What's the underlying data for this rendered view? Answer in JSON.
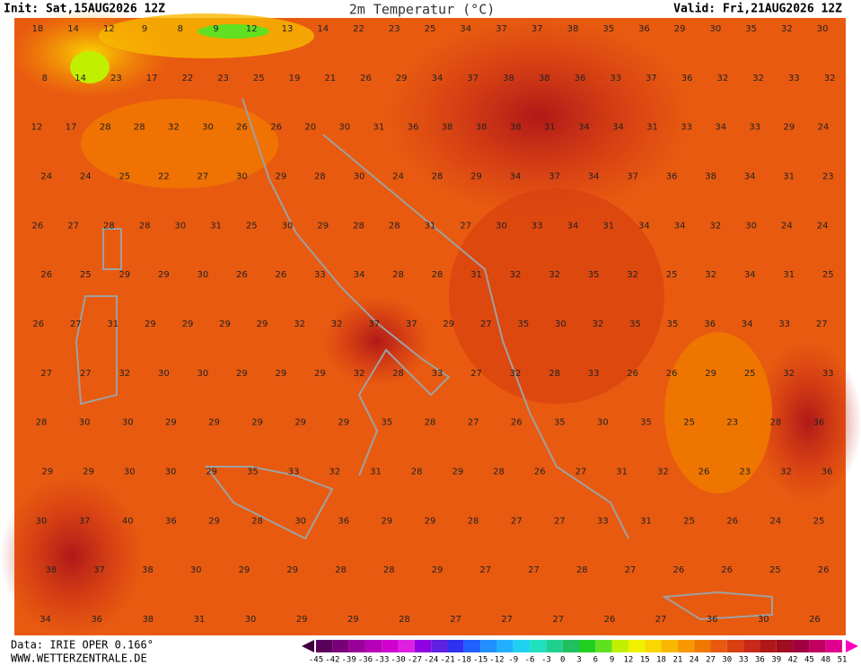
{
  "header": {
    "init": "Init: Sat,15AUG2026 12Z",
    "title": "2m Temperatur (°C)",
    "valid": "Valid: Fri,21AUG2026 12Z"
  },
  "footer": {
    "data": "Data: IRIE OPER 0.166°",
    "site": "WWW.WETTERZENTRALE.DE"
  },
  "temperature_rows": [
    [
      18,
      14,
      12,
      9,
      8,
      9,
      12,
      13,
      14,
      22,
      23,
      25,
      34,
      37,
      37,
      38,
      35,
      36,
      29,
      30,
      35,
      32,
      30
    ],
    [
      8,
      14,
      23,
      17,
      22,
      23,
      25,
      19,
      21,
      26,
      29,
      34,
      37,
      38,
      38,
      36,
      33,
      37,
      36,
      32,
      32,
      33,
      32
    ],
    [
      12,
      17,
      28,
      28,
      32,
      30,
      26,
      26,
      20,
      30,
      31,
      36,
      38,
      38,
      38,
      31,
      34,
      34,
      31,
      33,
      34,
      33,
      29,
      24
    ],
    [
      24,
      24,
      25,
      22,
      27,
      30,
      29,
      28,
      30,
      24,
      28,
      29,
      34,
      37,
      34,
      37,
      36,
      38,
      34,
      31,
      23
    ],
    [
      26,
      27,
      28,
      28,
      30,
      31,
      25,
      30,
      29,
      28,
      28,
      31,
      27,
      30,
      33,
      34,
      31,
      34,
      34,
      32,
      30,
      24,
      24
    ],
    [
      26,
      25,
      29,
      29,
      30,
      26,
      26,
      33,
      34,
      28,
      28,
      31,
      32,
      32,
      35,
      32,
      25,
      32,
      34,
      31,
      25
    ],
    [
      26,
      27,
      31,
      29,
      29,
      29,
      29,
      32,
      32,
      37,
      37,
      29,
      27,
      35,
      30,
      32,
      35,
      35,
      36,
      34,
      33,
      27
    ],
    [
      27,
      27,
      32,
      30,
      30,
      29,
      29,
      29,
      32,
      28,
      33,
      27,
      32,
      28,
      33,
      26,
      26,
      29,
      25,
      32,
      33
    ],
    [
      28,
      30,
      30,
      29,
      29,
      29,
      29,
      29,
      35,
      28,
      27,
      26,
      35,
      30,
      35,
      25,
      23,
      28,
      36
    ],
    [
      29,
      29,
      30,
      30,
      29,
      35,
      33,
      32,
      31,
      28,
      29,
      28,
      26,
      27,
      31,
      32,
      26,
      23,
      32,
      36
    ],
    [
      30,
      37,
      40,
      36,
      29,
      28,
      30,
      36,
      29,
      29,
      28,
      27,
      27,
      33,
      31,
      25,
      26,
      24,
      25
    ],
    [
      38,
      37,
      38,
      30,
      29,
      29,
      28,
      28,
      29,
      27,
      27,
      28,
      27,
      26,
      26,
      25,
      26
    ],
    [
      34,
      36,
      38,
      31,
      30,
      29,
      29,
      28,
      27,
      27,
      27,
      26,
      27,
      36,
      30,
      26
    ]
  ],
  "colorbar": {
    "ticks": [
      -45,
      -42,
      -39,
      -36,
      -33,
      -30,
      -27,
      -24,
      -21,
      -18,
      -15,
      -12,
      -9,
      -6,
      -3,
      0,
      3,
      6,
      9,
      12,
      15,
      18,
      21,
      24,
      27,
      30,
      33,
      36,
      39,
      42,
      45,
      48,
      51
    ],
    "colors": [
      "#5a005a",
      "#7a007a",
      "#9a009a",
      "#b800b8",
      "#d000d0",
      "#e020e0",
      "#9000e0",
      "#6020e0",
      "#3030f0",
      "#2060ff",
      "#2090ff",
      "#20b0ff",
      "#20d0f0",
      "#20e0c0",
      "#20d090",
      "#20c060",
      "#20d020",
      "#60e020",
      "#c0f000",
      "#f0f000",
      "#f8d800",
      "#f8b800",
      "#f89800",
      "#f07800",
      "#e85a10",
      "#d84010",
      "#c82818",
      "#b01818",
      "#a00c20",
      "#a00040",
      "#c00060",
      "#e00090"
    ]
  }
}
